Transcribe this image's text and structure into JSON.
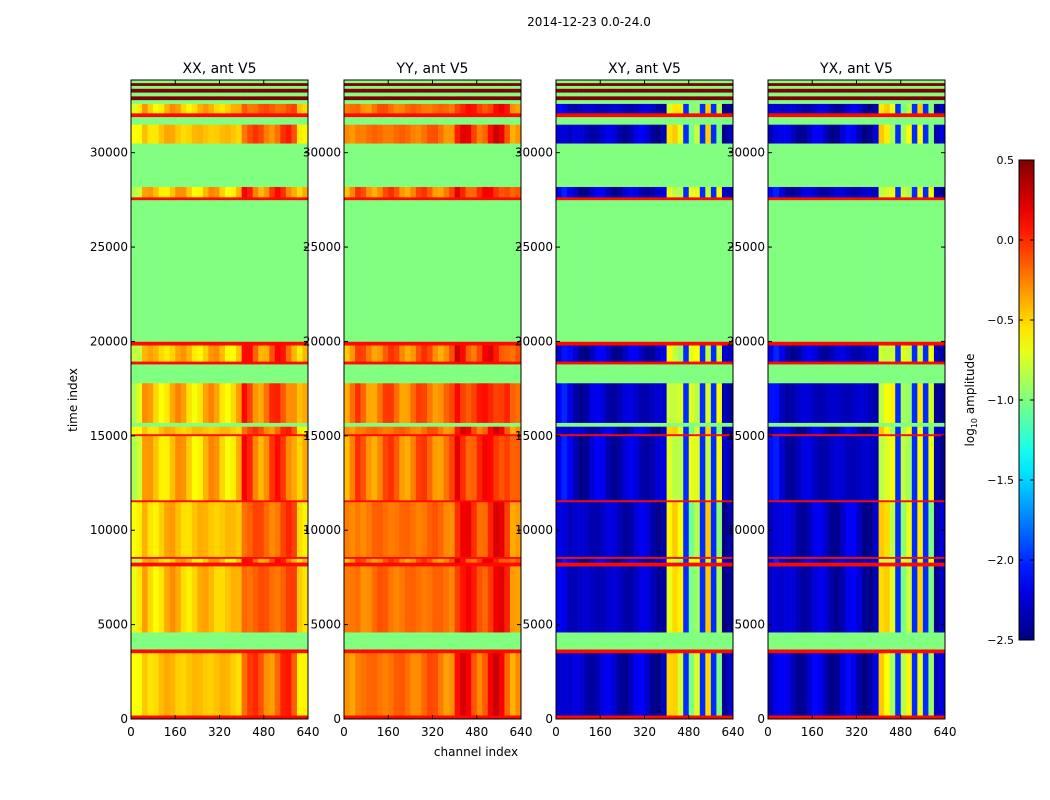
{
  "chart_data": {
    "type": "heatmap",
    "suptitle": "2014-12-23 0.0-24.0",
    "xlabel": "channel index",
    "ylabel": "time index",
    "xlim": [
      0,
      640
    ],
    "ylim": [
      0,
      33850
    ],
    "xticks": [
      "0",
      "160",
      "320",
      "480",
      "640"
    ],
    "xtick_values": [
      0,
      160,
      320,
      480,
      640
    ],
    "yticks": [
      "0",
      "5000",
      "10000",
      "15000",
      "20000",
      "25000",
      "30000"
    ],
    "ytick_values": [
      0,
      5000,
      10000,
      15000,
      20000,
      25000,
      30000
    ],
    "colorbar": {
      "label": "log10 amplitude",
      "label_main": "log",
      "label_sub": "10",
      "label_rest": " amplitude",
      "colormap": "jet",
      "range": [
        -2.5,
        0.5
      ],
      "ticks": [
        "0.5",
        "0.0",
        "−0.5",
        "−1.0",
        "−1.5",
        "−2.0",
        "−2.5"
      ],
      "tick_values": [
        0.5,
        0.0,
        -0.5,
        -1.0,
        -1.5,
        -2.0,
        -2.5
      ]
    },
    "flag_values": {
      "green": -1.0,
      "red": 0.1,
      "darkred": 0.5
    },
    "time_bands": [
      [
        0,
        200,
        "red"
      ],
      [
        200,
        3500,
        "data"
      ],
      [
        3500,
        3700,
        "red"
      ],
      [
        3700,
        4600,
        "green"
      ],
      [
        4600,
        8100,
        "data"
      ],
      [
        8100,
        8300,
        "red"
      ],
      [
        8300,
        8500,
        "data"
      ],
      [
        8500,
        8600,
        "red"
      ],
      [
        8600,
        11500,
        "data"
      ],
      [
        11500,
        11600,
        "red"
      ],
      [
        11600,
        15000,
        "data"
      ],
      [
        15000,
        15100,
        "red"
      ],
      [
        15100,
        15500,
        "data"
      ],
      [
        15500,
        15700,
        "green"
      ],
      [
        15700,
        17800,
        "data"
      ],
      [
        17800,
        18800,
        "green"
      ],
      [
        18800,
        18950,
        "red"
      ],
      [
        18950,
        19800,
        "data"
      ],
      [
        19800,
        20000,
        "red"
      ],
      [
        20000,
        27500,
        "green"
      ],
      [
        27500,
        27650,
        "red"
      ],
      [
        27650,
        28200,
        "data"
      ],
      [
        28200,
        30500,
        "green"
      ],
      [
        30500,
        31500,
        "data"
      ],
      [
        31500,
        31900,
        "green"
      ],
      [
        31900,
        32100,
        "red"
      ],
      [
        32100,
        32600,
        "data"
      ],
      [
        32600,
        32800,
        "green"
      ],
      [
        32800,
        33000,
        "darkred"
      ],
      [
        33000,
        33200,
        "green"
      ],
      [
        33200,
        33400,
        "darkred"
      ],
      [
        33400,
        33550,
        "green"
      ],
      [
        33550,
        33700,
        "darkred"
      ],
      [
        33700,
        33850,
        "green"
      ]
    ],
    "panels": [
      {
        "title": "XX, ant V5",
        "base": -0.45,
        "edge": -0.75,
        "rfi_range": [
          400,
          600
        ],
        "rfi": -0.15,
        "rfi_gaps": []
      },
      {
        "title": "YY, ant V5",
        "base": -0.2,
        "edge": -0.35,
        "rfi_range": [
          400,
          600
        ],
        "rfi": 0.0,
        "rfi_gaps": []
      },
      {
        "title": "XY, ant V5",
        "base": -2.3,
        "edge": -2.2,
        "rfi_range": [
          400,
          600
        ],
        "rfi": -0.75,
        "rfi_gaps": [
          460,
          520,
          560
        ]
      },
      {
        "title": "YX, ant V5",
        "base": -2.3,
        "edge": -2.2,
        "rfi_range": [
          400,
          600
        ],
        "rfi": -0.75,
        "rfi_gaps": [
          460,
          520,
          560
        ]
      }
    ]
  }
}
